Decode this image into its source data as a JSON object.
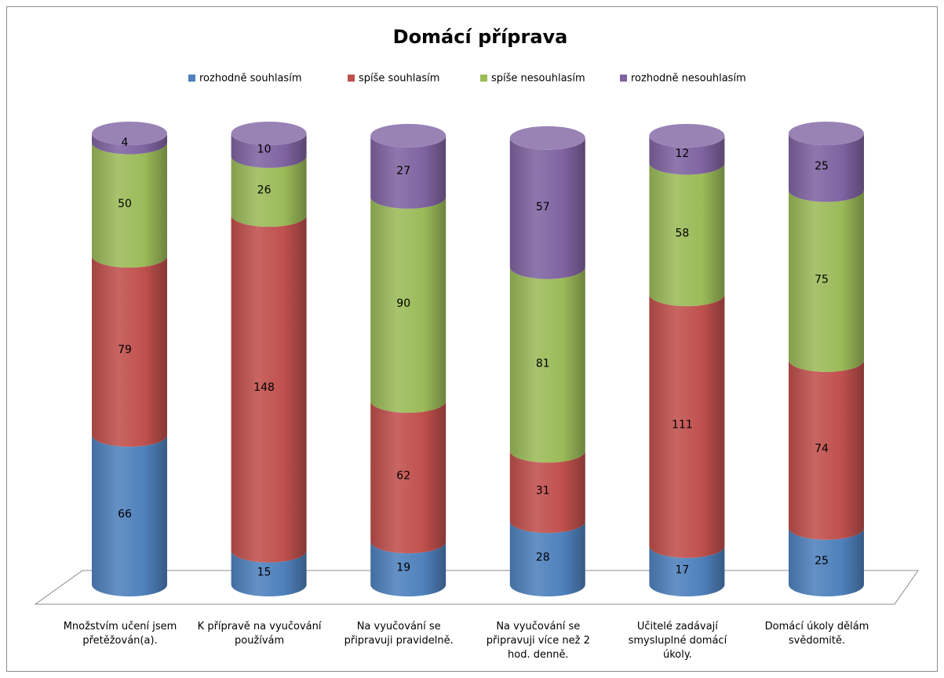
{
  "chart_data": {
    "type": "bar3d_stacked",
    "title": "Domácí příprava",
    "categories": [
      "Množstvím učení jsem přetěžován(a).",
      "K přípravě na vyučování používám",
      "Na vyučování se připravuji pravidelně.",
      "Na vyučování se připravuji více než 2 hod. denně.",
      "Učitelé zadávají smysluplné domácí úkoly.",
      "Domácí úkoly dělám svědomitě."
    ],
    "series": [
      {
        "name": "rozhodně souhlasím",
        "color": "#4f81bd",
        "values": [
          66,
          15,
          19,
          28,
          17,
          25
        ]
      },
      {
        "name": "spíše souhlasím",
        "color": "#c0504d",
        "values": [
          79,
          148,
          62,
          31,
          111,
          74
        ]
      },
      {
        "name": "spíše nesouhlasím",
        "color": "#9bbb59",
        "values": [
          50,
          26,
          90,
          81,
          58,
          75
        ]
      },
      {
        "name": "rozhodně nesouhlasím",
        "color": "#8064a2",
        "values": [
          4,
          10,
          27,
          57,
          12,
          25
        ]
      }
    ],
    "legend": "top"
  }
}
